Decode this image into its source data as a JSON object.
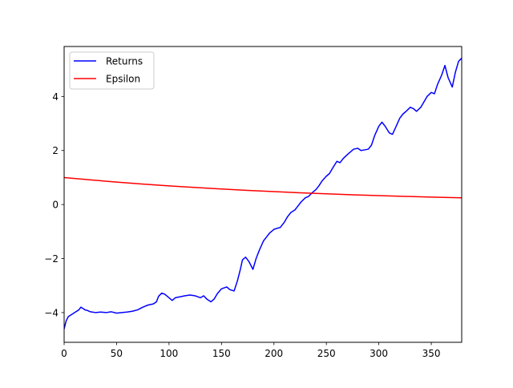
{
  "chart_data": {
    "type": "line",
    "title": "",
    "xlabel": "",
    "ylabel": "",
    "xlim": [
      0,
      379
    ],
    "ylim": [
      -5.1,
      5.85
    ],
    "grid": false,
    "legend_position": "upper-left",
    "x_ticks": [
      0,
      50,
      100,
      150,
      200,
      250,
      300,
      350
    ],
    "y_ticks": [
      -4,
      -2,
      0,
      2,
      4
    ],
    "x_tick_labels": [
      "0",
      "50",
      "100",
      "150",
      "200",
      "250",
      "300",
      "350"
    ],
    "y_tick_labels": [
      "−4",
      "−2",
      "0",
      "2",
      "4"
    ],
    "series": [
      {
        "name": "Returns",
        "color": "#0000ff",
        "points": [
          [
            0,
            -4.6
          ],
          [
            2,
            -4.3
          ],
          [
            4,
            -4.15
          ],
          [
            6,
            -4.1
          ],
          [
            8,
            -4.05
          ],
          [
            10,
            -4.0
          ],
          [
            12,
            -3.95
          ],
          [
            14,
            -3.9
          ],
          [
            16,
            -3.8
          ],
          [
            18,
            -3.85
          ],
          [
            20,
            -3.9
          ],
          [
            22,
            -3.92
          ],
          [
            25,
            -3.97
          ],
          [
            30,
            -4.0
          ],
          [
            35,
            -3.98
          ],
          [
            40,
            -4.0
          ],
          [
            45,
            -3.97
          ],
          [
            50,
            -4.02
          ],
          [
            55,
            -4.0
          ],
          [
            60,
            -3.98
          ],
          [
            65,
            -3.95
          ],
          [
            70,
            -3.9
          ],
          [
            75,
            -3.8
          ],
          [
            80,
            -3.72
          ],
          [
            85,
            -3.68
          ],
          [
            88,
            -3.6
          ],
          [
            90,
            -3.4
          ],
          [
            93,
            -3.28
          ],
          [
            96,
            -3.32
          ],
          [
            100,
            -3.45
          ],
          [
            103,
            -3.55
          ],
          [
            106,
            -3.45
          ],
          [
            110,
            -3.42
          ],
          [
            115,
            -3.38
          ],
          [
            120,
            -3.35
          ],
          [
            125,
            -3.38
          ],
          [
            130,
            -3.45
          ],
          [
            133,
            -3.38
          ],
          [
            136,
            -3.5
          ],
          [
            140,
            -3.6
          ],
          [
            143,
            -3.5
          ],
          [
            146,
            -3.3
          ],
          [
            150,
            -3.12
          ],
          [
            155,
            -3.05
          ],
          [
            158,
            -3.15
          ],
          [
            162,
            -3.2
          ],
          [
            165,
            -2.85
          ],
          [
            168,
            -2.4
          ],
          [
            170,
            -2.05
          ],
          [
            173,
            -1.95
          ],
          [
            176,
            -2.1
          ],
          [
            180,
            -2.4
          ],
          [
            183,
            -2.0
          ],
          [
            186,
            -1.7
          ],
          [
            190,
            -1.35
          ],
          [
            193,
            -1.2
          ],
          [
            196,
            -1.05
          ],
          [
            200,
            -0.92
          ],
          [
            203,
            -0.88
          ],
          [
            206,
            -0.85
          ],
          [
            210,
            -0.65
          ],
          [
            213,
            -0.45
          ],
          [
            216,
            -0.3
          ],
          [
            220,
            -0.2
          ],
          [
            223,
            -0.05
          ],
          [
            226,
            0.1
          ],
          [
            230,
            0.25
          ],
          [
            233,
            0.3
          ],
          [
            236,
            0.42
          ],
          [
            240,
            0.55
          ],
          [
            243,
            0.7
          ],
          [
            246,
            0.88
          ],
          [
            250,
            1.05
          ],
          [
            253,
            1.15
          ],
          [
            256,
            1.35
          ],
          [
            260,
            1.6
          ],
          [
            263,
            1.55
          ],
          [
            266,
            1.7
          ],
          [
            270,
            1.85
          ],
          [
            273,
            1.95
          ],
          [
            276,
            2.05
          ],
          [
            280,
            2.08
          ],
          [
            283,
            2.0
          ],
          [
            286,
            2.02
          ],
          [
            290,
            2.05
          ],
          [
            293,
            2.2
          ],
          [
            296,
            2.55
          ],
          [
            300,
            2.9
          ],
          [
            303,
            3.05
          ],
          [
            306,
            2.9
          ],
          [
            310,
            2.65
          ],
          [
            313,
            2.6
          ],
          [
            316,
            2.85
          ],
          [
            320,
            3.2
          ],
          [
            323,
            3.35
          ],
          [
            326,
            3.45
          ],
          [
            330,
            3.6
          ],
          [
            333,
            3.55
          ],
          [
            336,
            3.45
          ],
          [
            340,
            3.6
          ],
          [
            343,
            3.8
          ],
          [
            346,
            4.0
          ],
          [
            350,
            4.15
          ],
          [
            353,
            4.1
          ],
          [
            356,
            4.45
          ],
          [
            360,
            4.8
          ],
          [
            363,
            5.15
          ],
          [
            366,
            4.7
          ],
          [
            370,
            4.35
          ],
          [
            373,
            4.9
          ],
          [
            376,
            5.3
          ],
          [
            379,
            5.42
          ]
        ]
      },
      {
        "name": "Epsilon",
        "color": "#ff0000",
        "points": [
          [
            0,
            1.0
          ],
          [
            25,
            0.912
          ],
          [
            50,
            0.832
          ],
          [
            75,
            0.758
          ],
          [
            100,
            0.692
          ],
          [
            125,
            0.631
          ],
          [
            150,
            0.575
          ],
          [
            175,
            0.524
          ],
          [
            200,
            0.478
          ],
          [
            225,
            0.436
          ],
          [
            250,
            0.397
          ],
          [
            275,
            0.362
          ],
          [
            300,
            0.331
          ],
          [
            325,
            0.301
          ],
          [
            350,
            0.275
          ],
          [
            379,
            0.248
          ]
        ]
      }
    ]
  }
}
